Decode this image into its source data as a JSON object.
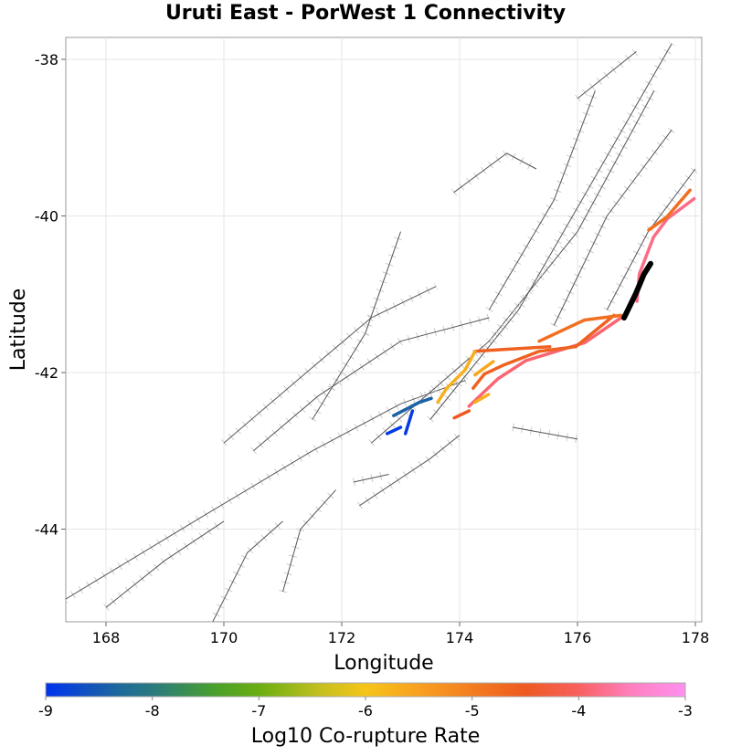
{
  "chart_data": {
    "type": "map",
    "title": "Uruti East - PorWest 1 Connectivity",
    "xlabel": "Longitude",
    "ylabel": "Latitude",
    "xlim": [
      167.3,
      178.1
    ],
    "ylim": [
      -45.2,
      -37.7
    ],
    "xticks": [
      168,
      170,
      172,
      174,
      176,
      178
    ],
    "yticks": [
      -38,
      -40,
      -42,
      -44
    ],
    "grid": true,
    "colorbar": {
      "label": "Log10 Co-rupture Rate",
      "range": [
        -9,
        -3
      ],
      "ticks": [
        -9,
        -8,
        -7,
        -6,
        -5,
        -4,
        -3
      ],
      "stops": [
        [
          -9,
          "#0033ee"
        ],
        [
          -8.3,
          "#1e6a9a"
        ],
        [
          -8,
          "#2a7a80"
        ],
        [
          -7.4,
          "#4aa02a"
        ],
        [
          -7,
          "#6aae10"
        ],
        [
          -6.4,
          "#c8c020"
        ],
        [
          -6,
          "#f5c518"
        ],
        [
          -5.5,
          "#f9a020"
        ],
        [
          -4.5,
          "#ee5a20"
        ],
        [
          -4,
          "#f86060"
        ],
        [
          -3.5,
          "#ff80c0"
        ],
        [
          -3,
          "#ff90f0"
        ]
      ]
    },
    "source_fault": {
      "name": "Uruti East",
      "color": "#000000",
      "trace": [
        [
          176.79,
          -41.3
        ],
        [
          176.99,
          -40.99
        ],
        [
          177.13,
          -40.74
        ],
        [
          177.24,
          -40.61
        ]
      ]
    },
    "ruptures": [
      {
        "rate": -3.8,
        "trace": [
          [
            177.01,
            -41.09
          ],
          [
            177.05,
            -40.74
          ],
          [
            177.29,
            -40.27
          ],
          [
            177.52,
            -40.04
          ],
          [
            177.98,
            -39.78
          ]
        ]
      },
      {
        "rate": -4.8,
        "trace": [
          [
            177.21,
            -40.18
          ],
          [
            177.52,
            -40.01
          ],
          [
            177.91,
            -39.67
          ]
        ]
      },
      {
        "rate": -3.9,
        "trace": [
          [
            174.16,
            -42.43
          ],
          [
            174.65,
            -42.08
          ],
          [
            175.12,
            -41.85
          ],
          [
            176.12,
            -41.62
          ],
          [
            176.74,
            -41.3
          ]
        ]
      },
      {
        "rate": -4.5,
        "trace": [
          [
            173.91,
            -42.58
          ],
          [
            174.16,
            -42.49
          ]
        ]
      },
      {
        "rate": -4.6,
        "trace": [
          [
            174.23,
            -42.2
          ],
          [
            174.42,
            -42.02
          ],
          [
            174.73,
            -41.91
          ],
          [
            175.35,
            -41.73
          ],
          [
            175.97,
            -41.67
          ],
          [
            176.62,
            -41.27
          ]
        ]
      },
      {
        "rate": -4.8,
        "trace": [
          [
            175.35,
            -41.6
          ],
          [
            176.12,
            -41.33
          ],
          [
            176.74,
            -41.27
          ]
        ]
      },
      {
        "rate": -4.6,
        "trace": [
          [
            174.26,
            -41.73
          ],
          [
            174.65,
            -41.71
          ],
          [
            175.53,
            -41.67
          ]
        ]
      },
      {
        "rate": -5.7,
        "trace": [
          [
            173.63,
            -42.38
          ],
          [
            173.78,
            -42.2
          ],
          [
            174.09,
            -41.97
          ],
          [
            174.26,
            -41.73
          ]
        ]
      },
      {
        "rate": -5.6,
        "trace": [
          [
            174.26,
            -42.03
          ],
          [
            174.57,
            -41.86
          ]
        ]
      },
      {
        "rate": -5.7,
        "trace": [
          [
            174.26,
            -42.38
          ],
          [
            174.49,
            -42.28
          ]
        ]
      },
      {
        "rate": -8.4,
        "trace": [
          [
            172.88,
            -42.55
          ],
          [
            173.32,
            -42.38
          ],
          [
            173.52,
            -42.33
          ]
        ]
      },
      {
        "rate": -8.9,
        "trace": [
          [
            172.77,
            -42.78
          ],
          [
            173.0,
            -42.7
          ]
        ]
      },
      {
        "rate": -8.9,
        "trace": [
          [
            173.08,
            -42.78
          ],
          [
            173.2,
            -42.49
          ]
        ]
      }
    ],
    "fault_traces": [
      [
        [
          167.3,
          -44.9
        ],
        [
          169.5,
          -43.9
        ],
        [
          171.5,
          -43.0
        ],
        [
          173.0,
          -42.4
        ],
        [
          174.1,
          -42.1
        ]
      ],
      [
        [
          170.0,
          -42.9
        ],
        [
          171.4,
          -42.0
        ],
        [
          172.5,
          -41.3
        ],
        [
          173.6,
          -40.9
        ]
      ],
      [
        [
          170.5,
          -43.0
        ],
        [
          171.6,
          -42.3
        ],
        [
          173.0,
          -41.6
        ],
        [
          174.5,
          -41.3
        ]
      ],
      [
        [
          171.5,
          -42.6
        ],
        [
          172.4,
          -41.5
        ],
        [
          173.0,
          -40.2
        ]
      ],
      [
        [
          172.5,
          -42.9
        ],
        [
          174.5,
          -41.6
        ],
        [
          176.0,
          -40.2
        ],
        [
          177.3,
          -38.4
        ]
      ],
      [
        [
          173.5,
          -42.6
        ],
        [
          175.0,
          -41.2
        ],
        [
          176.3,
          -39.5
        ],
        [
          177.6,
          -37.8
        ]
      ],
      [
        [
          174.5,
          -41.2
        ],
        [
          175.6,
          -39.8
        ],
        [
          176.3,
          -38.4
        ]
      ],
      [
        [
          175.6,
          -41.4
        ],
        [
          176.5,
          -40.0
        ],
        [
          177.6,
          -38.9
        ]
      ],
      [
        [
          176.5,
          -41.2
        ],
        [
          177.2,
          -40.2
        ],
        [
          178.0,
          -39.4
        ]
      ],
      [
        [
          168.0,
          -45.0
        ],
        [
          169.0,
          -44.4
        ],
        [
          170.0,
          -43.9
        ]
      ],
      [
        [
          169.8,
          -45.2
        ],
        [
          170.4,
          -44.3
        ],
        [
          171.0,
          -43.9
        ]
      ],
      [
        [
          171.0,
          -44.8
        ],
        [
          171.3,
          -44.0
        ],
        [
          171.9,
          -43.5
        ]
      ],
      [
        [
          172.3,
          -43.7
        ],
        [
          173.5,
          -43.1
        ],
        [
          174.0,
          -42.8
        ]
      ],
      [
        [
          174.9,
          -42.7
        ],
        [
          176.0,
          -42.85
        ]
      ],
      [
        [
          172.2,
          -43.4
        ],
        [
          172.8,
          -43.3
        ]
      ],
      [
        [
          173.9,
          -39.7
        ],
        [
          174.8,
          -39.2
        ],
        [
          175.3,
          -39.4
        ]
      ],
      [
        [
          176.0,
          -38.5
        ],
        [
          177.0,
          -37.9
        ]
      ]
    ]
  }
}
